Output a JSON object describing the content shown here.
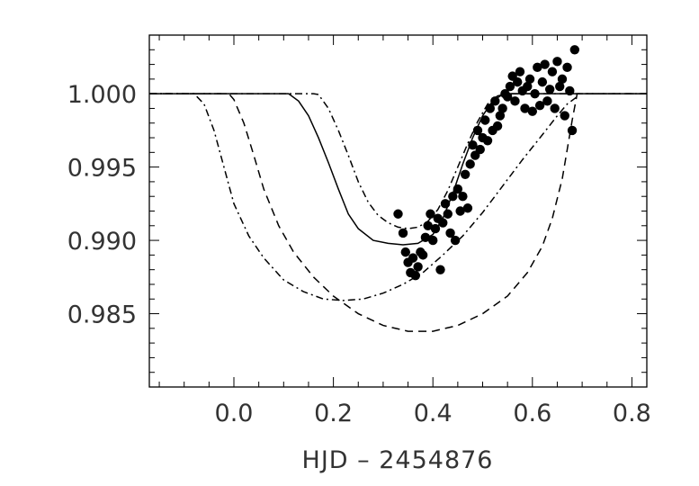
{
  "chart_data": {
    "type": "line",
    "title": "",
    "xlabel": "HJD – 2454876",
    "ylabel": "",
    "xlim": [
      -0.17,
      0.83
    ],
    "ylim": [
      0.98,
      1.004
    ],
    "x_ticks": [
      0.0,
      0.2,
      0.4,
      0.6,
      0.8
    ],
    "x_tick_labels": [
      "0.0",
      "0.2",
      "0.4",
      "0.6",
      "0.8"
    ],
    "x_minor_step": 0.05,
    "y_ticks": [
      0.985,
      0.99,
      0.995,
      1.0
    ],
    "y_tick_labels": [
      "0.985",
      "0.990",
      "0.995",
      "1.000"
    ],
    "y_minor_step": 0.001,
    "grid": false,
    "legend": "none",
    "series": [
      {
        "style": "solid",
        "x": [
          -0.17,
          0.1,
          0.11,
          0.13,
          0.15,
          0.17,
          0.19,
          0.21,
          0.23,
          0.25,
          0.28,
          0.31,
          0.34,
          0.37,
          0.4,
          0.42,
          0.44,
          0.46,
          0.48,
          0.5,
          0.52,
          0.54,
          0.55,
          0.56,
          0.83
        ],
        "y": [
          1.0,
          1.0,
          1.0,
          0.9995,
          0.9985,
          0.997,
          0.9953,
          0.9935,
          0.9918,
          0.9908,
          0.99,
          0.9898,
          0.9897,
          0.9898,
          0.9904,
          0.9915,
          0.9932,
          0.9952,
          0.997,
          0.9985,
          0.9995,
          0.99995,
          1.0,
          1.0,
          1.0
        ]
      },
      {
        "style": "dashdot",
        "x": [
          -0.17,
          0.16,
          0.17,
          0.19,
          0.21,
          0.23,
          0.25,
          0.27,
          0.29,
          0.31,
          0.33,
          0.35,
          0.37,
          0.39,
          0.41,
          0.43,
          0.45,
          0.47,
          0.49,
          0.51,
          0.53,
          0.55,
          0.83
        ],
        "y": [
          1.0,
          1.0,
          0.99995,
          0.999,
          0.9975,
          0.9958,
          0.994,
          0.9926,
          0.9917,
          0.9912,
          0.9909,
          0.9908,
          0.9909,
          0.9913,
          0.9921,
          0.9934,
          0.995,
          0.9966,
          0.9981,
          0.9993,
          0.99985,
          1.0,
          1.0
        ]
      },
      {
        "style": "dashdot",
        "x": [
          -0.17,
          -0.08,
          -0.06,
          -0.04,
          -0.02,
          0.0,
          0.03,
          0.06,
          0.1,
          0.14,
          0.18,
          0.22,
          0.26,
          0.3,
          0.34,
          0.38,
          0.42,
          0.46,
          0.5,
          0.54,
          0.58,
          0.62,
          0.65,
          0.67,
          0.69
        ],
        "y": [
          1.0,
          1.0,
          0.9993,
          0.9975,
          0.995,
          0.9925,
          0.9903,
          0.9888,
          0.9873,
          0.9865,
          0.986,
          0.9859,
          0.986,
          0.9864,
          0.987,
          0.9878,
          0.989,
          0.9903,
          0.9919,
          0.9937,
          0.9955,
          0.9972,
          0.9985,
          0.9993,
          0.9998
        ]
      },
      {
        "style": "dashed",
        "x": [
          -0.17,
          -0.01,
          0.0,
          0.02,
          0.04,
          0.06,
          0.09,
          0.12,
          0.16,
          0.2,
          0.25,
          0.3,
          0.35,
          0.4,
          0.45,
          0.5,
          0.55,
          0.59,
          0.62,
          0.64,
          0.66,
          0.67,
          0.68,
          0.69,
          0.83
        ],
        "y": [
          1.0,
          1.0,
          0.9996,
          0.998,
          0.9958,
          0.9935,
          0.991,
          0.9892,
          0.9875,
          0.9862,
          0.985,
          0.9842,
          0.9838,
          0.9838,
          0.9842,
          0.985,
          0.9862,
          0.9878,
          0.9896,
          0.9915,
          0.9942,
          0.9962,
          0.9982,
          1.0,
          1.0
        ]
      },
      {
        "style": "points",
        "x": [
          0.33,
          0.34,
          0.345,
          0.35,
          0.355,
          0.36,
          0.365,
          0.37,
          0.375,
          0.38,
          0.385,
          0.39,
          0.395,
          0.4,
          0.405,
          0.41,
          0.415,
          0.42,
          0.425,
          0.43,
          0.435,
          0.44,
          0.445,
          0.45,
          0.455,
          0.46,
          0.465,
          0.47,
          0.475,
          0.48,
          0.485,
          0.49,
          0.495,
          0.5,
          0.505,
          0.51,
          0.515,
          0.52,
          0.525,
          0.53,
          0.535,
          0.54,
          0.545,
          0.55,
          0.555,
          0.56,
          0.565,
          0.57,
          0.575,
          0.58,
          0.585,
          0.59,
          0.595,
          0.6,
          0.605,
          0.61,
          0.615,
          0.62,
          0.625,
          0.63,
          0.635,
          0.64,
          0.645,
          0.65,
          0.655,
          0.66,
          0.665,
          0.67,
          0.675,
          0.68,
          0.685
        ],
        "y": [
          0.9918,
          0.9905,
          0.9892,
          0.9885,
          0.9878,
          0.9888,
          0.9876,
          0.9882,
          0.9892,
          0.989,
          0.9902,
          0.991,
          0.9918,
          0.99,
          0.9908,
          0.9915,
          0.988,
          0.9912,
          0.9925,
          0.9918,
          0.9905,
          0.993,
          0.99,
          0.9935,
          0.992,
          0.993,
          0.9945,
          0.9922,
          0.9952,
          0.9965,
          0.9958,
          0.9975,
          0.9962,
          0.997,
          0.9982,
          0.9968,
          0.999,
          0.9975,
          0.9995,
          0.9978,
          0.9985,
          0.999,
          1.0,
          0.9998,
          1.0005,
          1.0012,
          0.9995,
          1.0008,
          1.0015,
          1.0002,
          0.999,
          1.0005,
          1.001,
          0.9988,
          1.0,
          1.0018,
          0.9992,
          1.0008,
          1.002,
          0.9995,
          1.0003,
          1.0015,
          0.999,
          1.0022,
          1.0005,
          1.001,
          0.9985,
          1.0018,
          1.0002,
          0.9975,
          1.003
        ]
      }
    ]
  }
}
